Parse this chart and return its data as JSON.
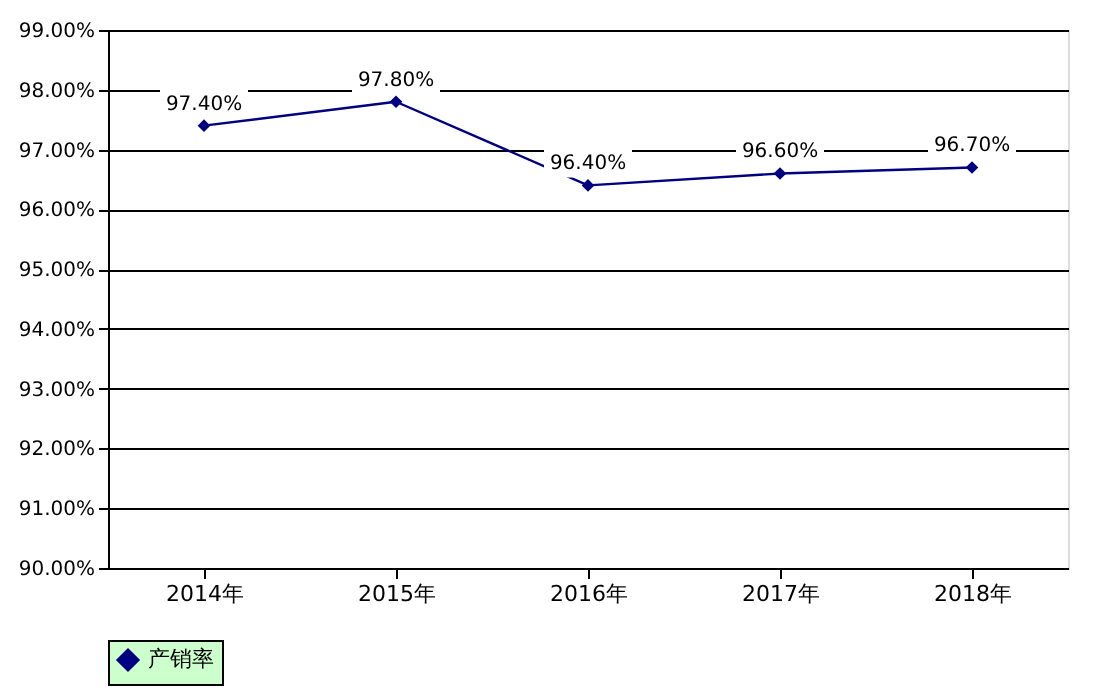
{
  "chart_data": {
    "type": "line",
    "categories": [
      "2014年",
      "2015年",
      "2016年",
      "2017年",
      "2018年"
    ],
    "series": [
      {
        "name": "产销率",
        "color": "#000080",
        "values": [
          97.4,
          97.8,
          96.4,
          96.6,
          96.7
        ],
        "value_labels": [
          "97.40%",
          "97.80%",
          "96.40%",
          "96.60%",
          "96.70%"
        ]
      }
    ],
    "ylim": [
      90,
      99
    ],
    "yticks": [
      {
        "value": 90,
        "label": "90.00%"
      },
      {
        "value": 91,
        "label": "91.00%"
      },
      {
        "value": 92,
        "label": "92.00%"
      },
      {
        "value": 93,
        "label": "93.00%"
      },
      {
        "value": 94,
        "label": "94.00%"
      },
      {
        "value": 95,
        "label": "95.00%"
      },
      {
        "value": 96,
        "label": "96.00%"
      },
      {
        "value": 97,
        "label": "97.00%"
      },
      {
        "value": 98,
        "label": "98.00%"
      },
      {
        "value": 99,
        "label": "99.00%"
      }
    ],
    "grid": "y",
    "legend": "bottom",
    "marker": "diamond",
    "line_style": "solid"
  }
}
